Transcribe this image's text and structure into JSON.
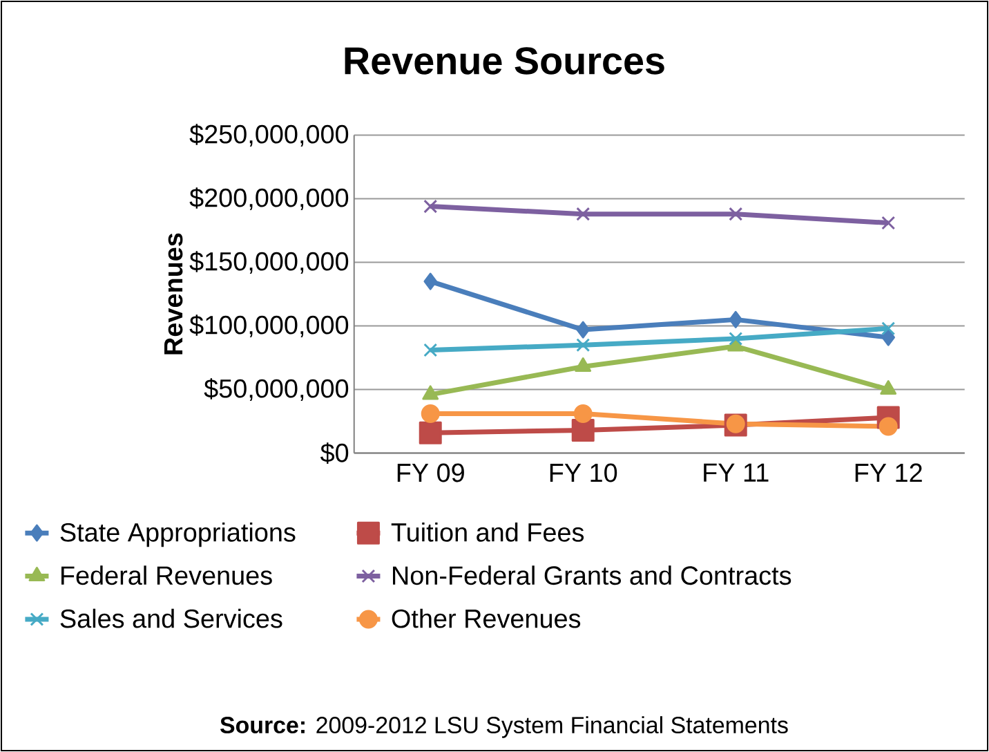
{
  "chart_data": {
    "type": "line",
    "title": "Revenue Sources",
    "ylabel": "Revenues",
    "categories": [
      "FY 09",
      "FY 10",
      "FY 11",
      "FY 12"
    ],
    "series": [
      {
        "name": "State Appropriations",
        "color": "#4a7ebb",
        "marker": "diamond",
        "values": [
          135000000,
          97000000,
          105000000,
          91000000
        ]
      },
      {
        "name": "Tuition and Fees",
        "color": "#be4b48",
        "marker": "square",
        "values": [
          16000000,
          18000000,
          22000000,
          28000000
        ]
      },
      {
        "name": "Federal Revenues",
        "color": "#98b954",
        "marker": "triangle",
        "values": [
          46000000,
          68000000,
          84000000,
          50000000
        ]
      },
      {
        "name": "Non-Federal Grants and Contracts",
        "color": "#7d60a0",
        "marker": "cross",
        "values": [
          194000000,
          188000000,
          188000000,
          181000000
        ]
      },
      {
        "name": "Sales and Services",
        "color": "#46aac5",
        "marker": "cross",
        "values": [
          81000000,
          85000000,
          90000000,
          98000000
        ]
      },
      {
        "name": "Other Revenues",
        "color": "#f79646",
        "marker": "circle",
        "values": [
          31000000,
          31000000,
          23000000,
          21000000
        ]
      }
    ],
    "ylim": [
      0,
      250000000
    ],
    "yticks": [
      {
        "value": 0,
        "label": "$0"
      },
      {
        "value": 50000000,
        "label": "$50,000,000"
      },
      {
        "value": 100000000,
        "label": "$100,000,000"
      },
      {
        "value": 150000000,
        "label": "$150,000,000"
      },
      {
        "value": 200000000,
        "label": "$200,000,000"
      },
      {
        "value": 250000000,
        "label": "$250,000,000"
      }
    ],
    "grid": "y",
    "legend": "bottom",
    "annotations": [
      "**Source:** 2009-2012 LSU System Financial Statements"
    ]
  }
}
